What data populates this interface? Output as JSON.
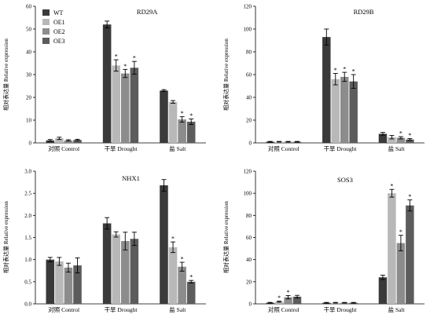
{
  "y_axis_label": "相对表达量 Relative expression",
  "legend": {
    "entries": [
      "WT",
      "OE1",
      "OE2",
      "OE3"
    ],
    "colors": [
      "#3a3a3a",
      "#b8b8b8",
      "#8c8c8c",
      "#5c5c5c"
    ]
  },
  "chart_data": [
    {
      "type": "bar",
      "title": "RD29A",
      "categories": [
        "对照 Control",
        "干旱 Drought",
        "盐 Salt"
      ],
      "ylim": [
        0,
        60
      ],
      "yticks": [
        0,
        10,
        20,
        30,
        40,
        50,
        60
      ],
      "tick_decimals": 0,
      "show_legend": true,
      "series": [
        {
          "name": "WT",
          "values": [
            1.1,
            52,
            23
          ],
          "errors": [
            0.4,
            1.5,
            0.4
          ],
          "stars": [
            false,
            false,
            false
          ]
        },
        {
          "name": "OE1",
          "values": [
            2.0,
            34,
            18
          ],
          "errors": [
            0.5,
            2.5,
            0.6
          ],
          "stars": [
            false,
            true,
            false
          ]
        },
        {
          "name": "OE2",
          "values": [
            1.1,
            30.5,
            10.3
          ],
          "errors": [
            0.3,
            1.8,
            1.2
          ],
          "stars": [
            false,
            true,
            true
          ]
        },
        {
          "name": "OE3",
          "values": [
            1.3,
            33,
            9.3
          ],
          "errors": [
            0.3,
            2.8,
            1.2
          ],
          "stars": [
            false,
            true,
            true
          ]
        }
      ]
    },
    {
      "type": "bar",
      "title": "RD29B",
      "categories": [
        "对照 Control",
        "干旱 Drought",
        "盐 Salt"
      ],
      "ylim": [
        0,
        120
      ],
      "yticks": [
        0,
        20,
        40,
        60,
        80,
        100,
        120
      ],
      "tick_decimals": 0,
      "show_legend": false,
      "series": [
        {
          "name": "WT",
          "values": [
            1.0,
            93,
            8
          ],
          "errors": [
            0.3,
            7,
            1.2
          ],
          "stars": [
            false,
            false,
            false
          ]
        },
        {
          "name": "OE1",
          "values": [
            1.0,
            56,
            5
          ],
          "errors": [
            0.3,
            5,
            1.5
          ],
          "stars": [
            false,
            true,
            false
          ]
        },
        {
          "name": "OE2",
          "values": [
            1.0,
            58,
            4.5
          ],
          "errors": [
            0.3,
            4,
            1
          ],
          "stars": [
            false,
            true,
            true
          ]
        },
        {
          "name": "OE3",
          "values": [
            1.0,
            54,
            3
          ],
          "errors": [
            0.3,
            6,
            0.8
          ],
          "stars": [
            false,
            true,
            true
          ]
        }
      ]
    },
    {
      "type": "bar",
      "title": "NHX1",
      "categories": [
        "对照 Control",
        "干旱 Drought",
        "盐 Salt"
      ],
      "ylim": [
        0,
        3.0
      ],
      "yticks": [
        0,
        0.5,
        1.0,
        1.5,
        2.0,
        2.5,
        3.0
      ],
      "tick_decimals": 1,
      "show_legend": false,
      "series": [
        {
          "name": "WT",
          "values": [
            1.0,
            1.82,
            2.68
          ],
          "errors": [
            0.05,
            0.13,
            0.13
          ],
          "stars": [
            false,
            false,
            false
          ]
        },
        {
          "name": "OE1",
          "values": [
            0.96,
            1.57,
            1.28
          ],
          "errors": [
            0.09,
            0.06,
            0.12
          ],
          "stars": [
            false,
            false,
            true
          ]
        },
        {
          "name": "OE2",
          "values": [
            0.82,
            1.42,
            0.84
          ],
          "errors": [
            0.1,
            0.2,
            0.1
          ],
          "stars": [
            false,
            false,
            true
          ]
        },
        {
          "name": "OE3",
          "values": [
            0.87,
            1.47,
            0.5
          ],
          "errors": [
            0.17,
            0.15,
            0.03
          ],
          "stars": [
            false,
            false,
            true
          ]
        }
      ]
    },
    {
      "type": "bar",
      "title": "SOS3",
      "categories": [
        "对照 Control",
        "干旱 Drought",
        "盐 Salt"
      ],
      "ylim": [
        0,
        120
      ],
      "yticks": [
        0,
        20,
        40,
        60,
        80,
        100,
        120
      ],
      "tick_decimals": 0,
      "show_legend": false,
      "series": [
        {
          "name": "WT",
          "values": [
            1.0,
            1.0,
            24
          ],
          "errors": [
            0.3,
            0.3,
            2
          ],
          "stars": [
            false,
            false,
            false
          ]
        },
        {
          "name": "OE1",
          "values": [
            2.0,
            1.0,
            100
          ],
          "errors": [
            0.5,
            0.3,
            3.5
          ],
          "stars": [
            true,
            false,
            true
          ]
        },
        {
          "name": "OE2",
          "values": [
            6.0,
            1.0,
            55
          ],
          "errors": [
            1.5,
            0.3,
            7
          ],
          "stars": [
            true,
            false,
            true
          ]
        },
        {
          "name": "OE3",
          "values": [
            6.5,
            1.0,
            89
          ],
          "errors": [
            1.2,
            0.3,
            5
          ],
          "stars": [
            false,
            false,
            true
          ]
        }
      ]
    }
  ]
}
